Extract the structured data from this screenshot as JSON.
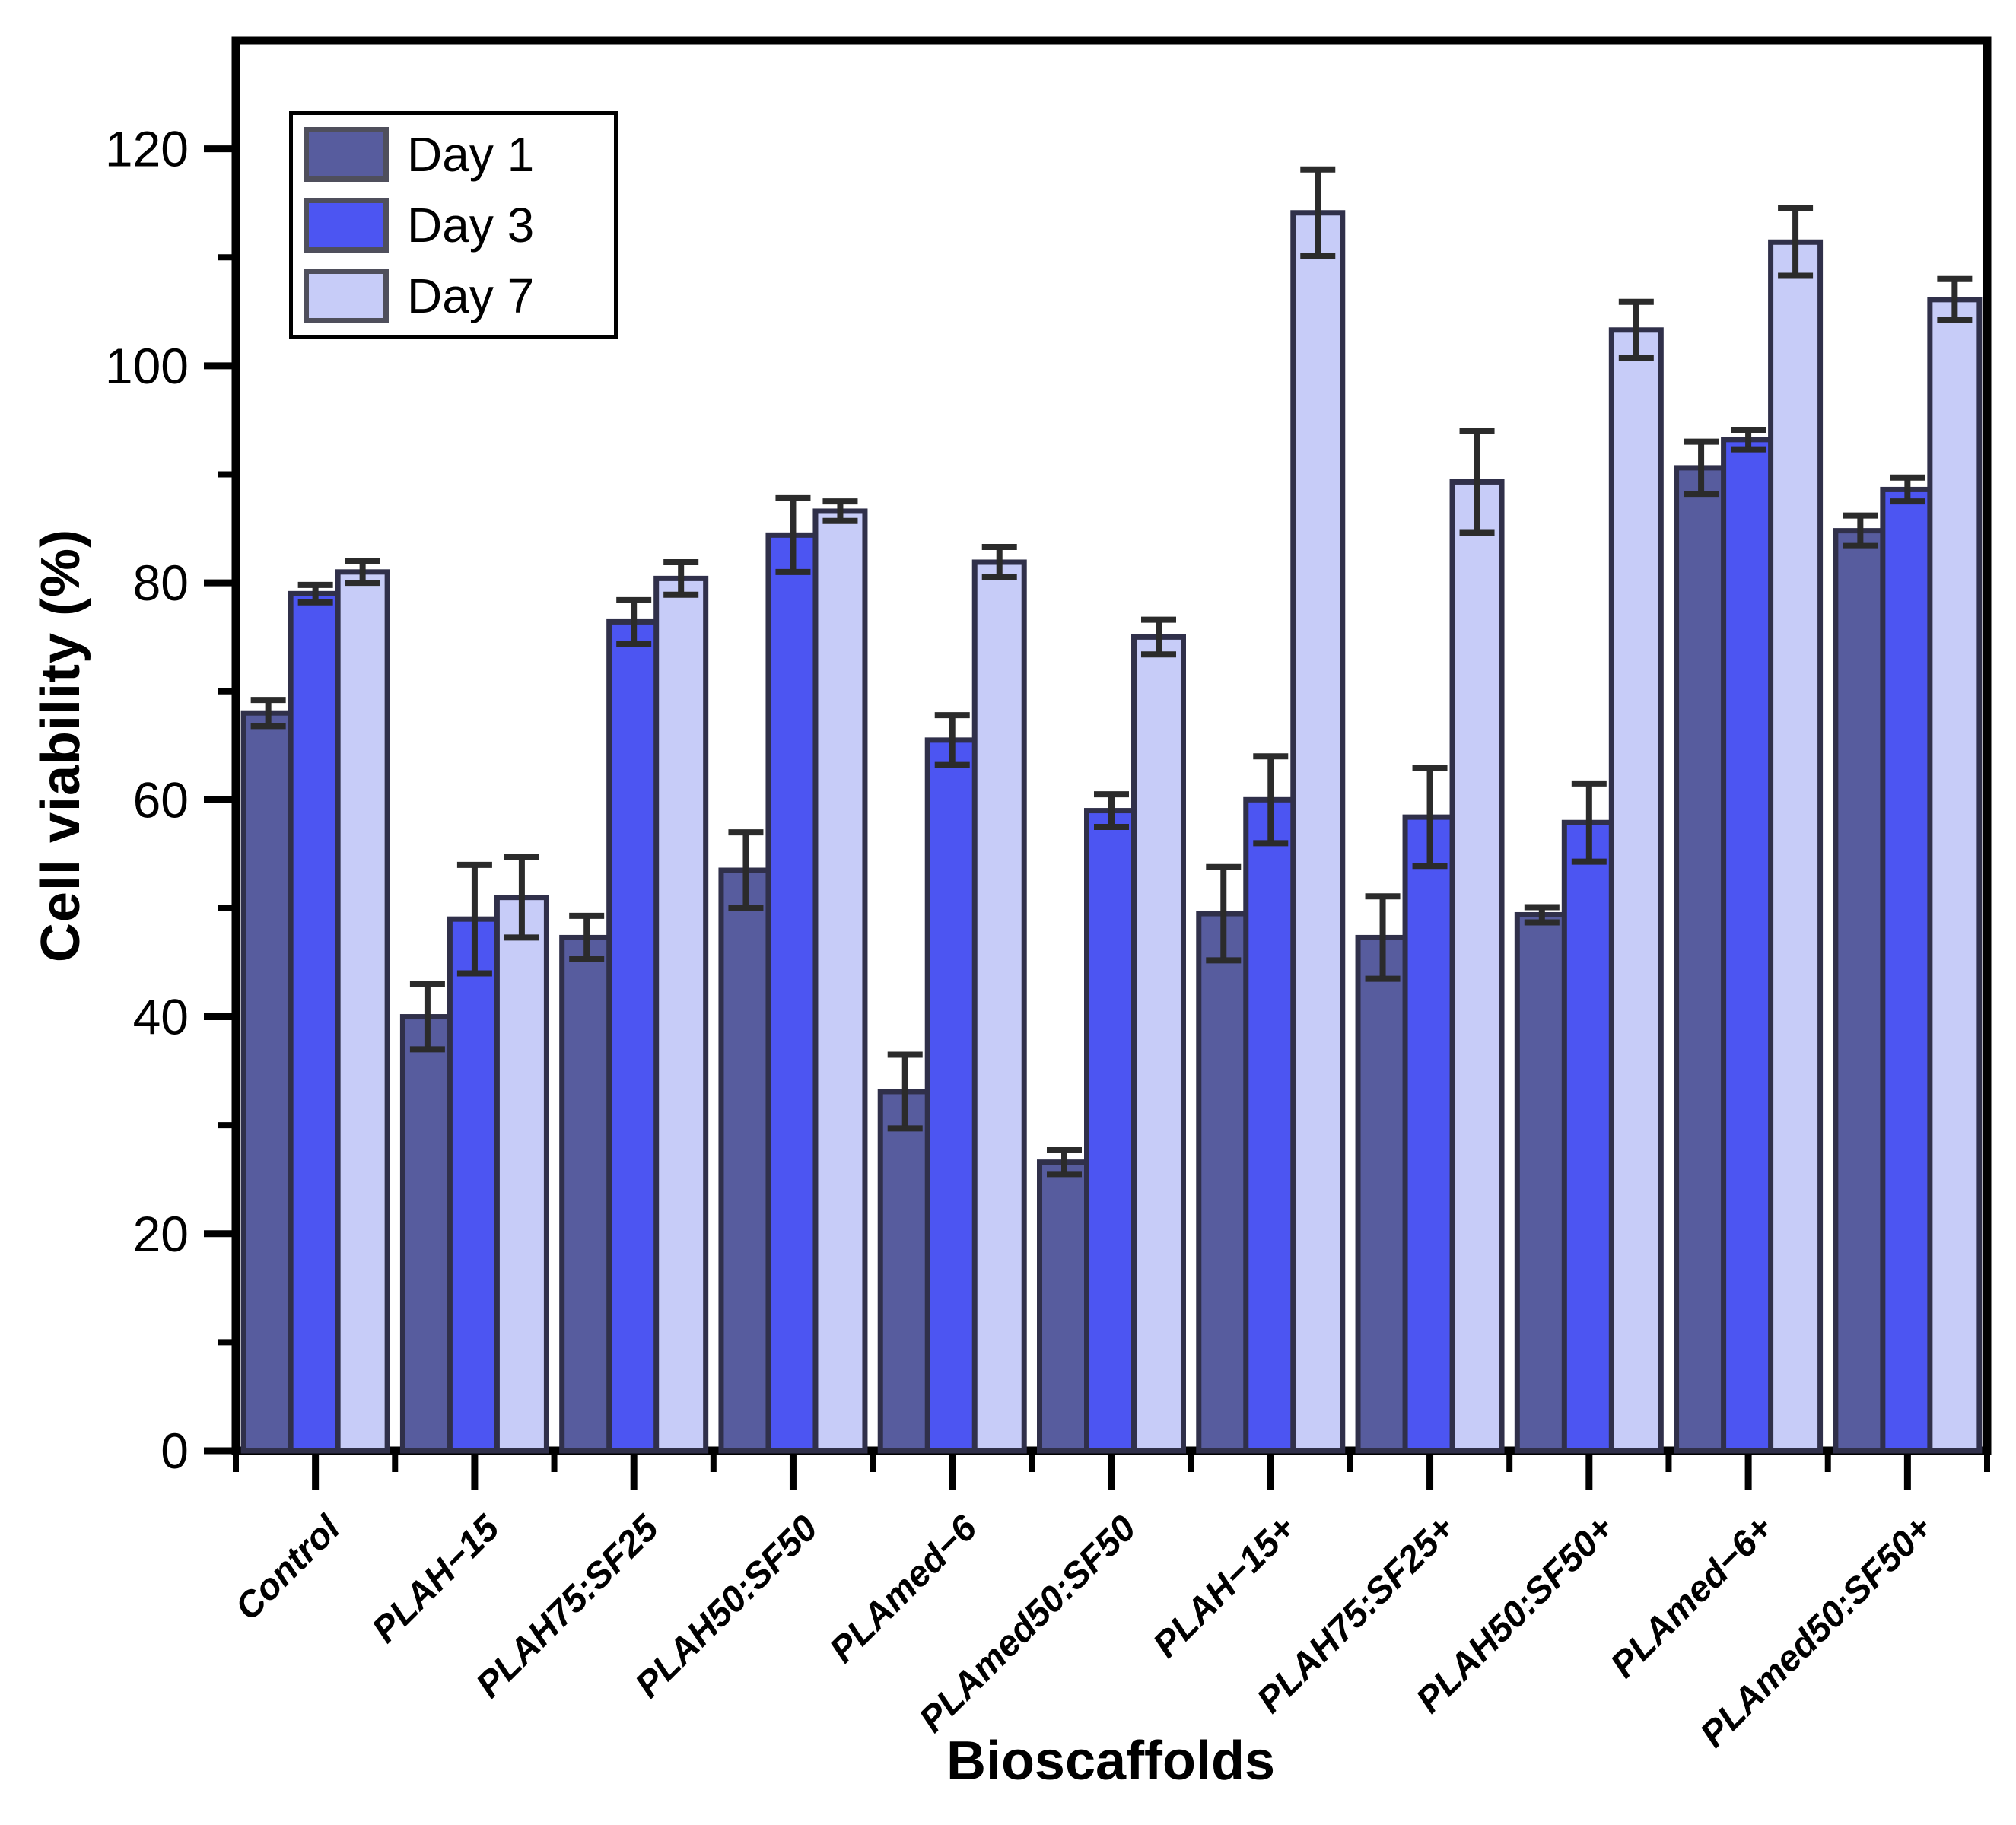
{
  "chart_data": {
    "type": "bar",
    "title": "",
    "xlabel": "Bioscaffolds",
    "ylabel": "Cell viability (%)",
    "categories": [
      "Control",
      "PLAH−15",
      "PLAH75:SF25",
      "PLAH50:SF50",
      "PLAmed−6",
      "PLAmed50:SF50",
      "PLAH−15+",
      "PLAH75:SF25+",
      "PLAH50:SF50+",
      "PLAmed−6+",
      "PLAmed50:SF50+"
    ],
    "series": [
      {
        "name": "Day 1",
        "color": "#575c9e",
        "values": [
          68.0,
          40.0,
          47.3,
          53.5,
          33.1,
          26.6,
          49.5,
          47.3,
          49.4,
          90.6,
          84.8
        ],
        "errors": [
          1.2,
          3.0,
          2.0,
          3.5,
          3.4,
          1.1,
          4.3,
          3.8,
          0.7,
          2.4,
          1.4
        ]
      },
      {
        "name": "Day 3",
        "color": "#4c55f2",
        "values": [
          79.0,
          49.0,
          76.4,
          84.4,
          65.5,
          59.0,
          60.0,
          58.4,
          57.9,
          93.2,
          88.6
        ],
        "errors": [
          0.8,
          5.0,
          2.0,
          3.4,
          2.3,
          1.5,
          4.0,
          4.5,
          3.6,
          0.9,
          1.1
        ]
      },
      {
        "name": "Day 7",
        "color": "#c7ccf8",
        "values": [
          81.0,
          51.0,
          80.4,
          86.6,
          81.9,
          75.0,
          114.1,
          89.3,
          103.3,
          111.4,
          106.1
        ],
        "errors": [
          1.0,
          3.7,
          1.5,
          0.9,
          1.4,
          1.6,
          4.0,
          4.7,
          2.6,
          3.1,
          1.9
        ]
      }
    ],
    "ylim": [
      0,
      130
    ],
    "yticks_major": [
      0,
      20,
      40,
      60,
      80,
      100,
      120
    ],
    "yticks_minor": [
      10,
      30,
      50,
      70,
      90,
      110
    ],
    "grid": false,
    "legend_position": "top-left",
    "frame_color": "#000000",
    "bar_outline": "#30304a",
    "error_color": "#2b2b2b",
    "legend_swatch_outline": "#4f4f5c"
  }
}
